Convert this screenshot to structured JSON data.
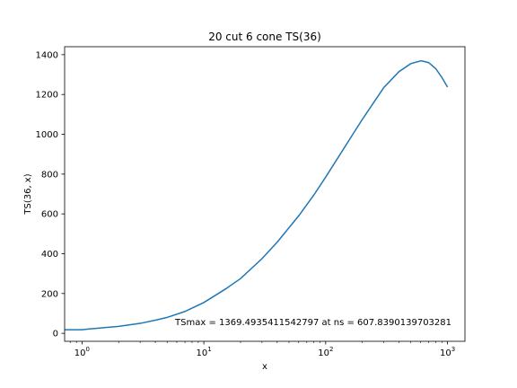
{
  "chart_data": {
    "type": "line",
    "title": "20 cut 6 cone TS(36)",
    "xlabel": "x",
    "ylabel": "TS(36, x)",
    "xscale": "log",
    "xlim": [
      0.72,
      1390
    ],
    "ylim": [
      -40,
      1440
    ],
    "xticks": [
      {
        "value": 1,
        "base": "10",
        "exp": "0"
      },
      {
        "value": 10,
        "base": "10",
        "exp": "1"
      },
      {
        "value": 100,
        "base": "10",
        "exp": "2"
      },
      {
        "value": 1000,
        "base": "10",
        "exp": "3"
      }
    ],
    "yticks": [
      0,
      200,
      400,
      600,
      800,
      1000,
      1200,
      1400
    ],
    "grid": false,
    "line_color": "#1f77b4",
    "annotation": "TSmax = 1369.4935411542797 at ns = 607.8390139703281",
    "series": [
      {
        "x": [
          0.72,
          1.0,
          1.1,
          1.5,
          2.0,
          3.0,
          4.0,
          5.0,
          7.0,
          10,
          15,
          20,
          30,
          40,
          60,
          80,
          100,
          150,
          200,
          300,
          400,
          500,
          607.84,
          700,
          800,
          900,
          1000
        ],
        "y": [
          18,
          18,
          21,
          28,
          35,
          50,
          66,
          80,
          110,
          155,
          222,
          275,
          375,
          458,
          590,
          695,
          785,
          955,
          1075,
          1235,
          1315,
          1355,
          1369.49,
          1360,
          1330,
          1285,
          1237
        ]
      }
    ]
  }
}
